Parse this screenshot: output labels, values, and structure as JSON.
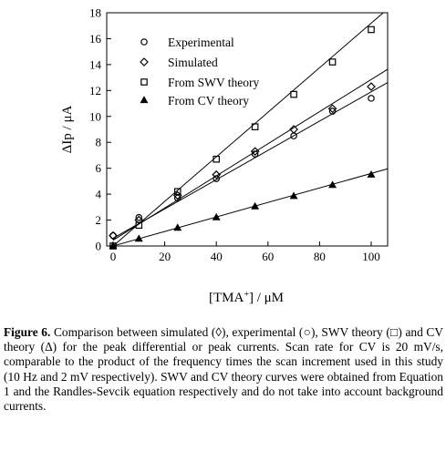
{
  "chart_data": {
    "type": "scatter",
    "xlabel": "[TMA+] / μM",
    "ylabel": "ΔIp / μA",
    "xlim": [
      0,
      105
    ],
    "ylim": [
      0,
      18
    ],
    "xticks": [
      0,
      20,
      40,
      60,
      80,
      100
    ],
    "yticks": [
      0,
      2,
      4,
      6,
      8,
      10,
      12,
      14,
      16,
      18
    ],
    "grid": false,
    "legend_position": "top-left",
    "series": [
      {
        "name": "Experimental",
        "marker": "circle",
        "x": [
          0,
          10,
          25,
          40,
          55,
          70,
          85,
          100
        ],
        "y": [
          0.8,
          2.2,
          3.7,
          5.2,
          7.1,
          8.5,
          10.4,
          11.4
        ],
        "fit": [
          0.6,
          0.113
        ]
      },
      {
        "name": "Simulated",
        "marker": "diamond",
        "x": [
          0,
          10,
          25,
          40,
          55,
          70,
          85,
          100
        ],
        "y": [
          0.8,
          2.0,
          3.9,
          5.5,
          7.3,
          9.0,
          10.6,
          12.3
        ],
        "fit": [
          0.45,
          0.124
        ]
      },
      {
        "name": "From SWV theory",
        "marker": "square",
        "x": [
          0,
          10,
          25,
          40,
          55,
          70,
          85,
          100
        ],
        "y": [
          0,
          1.6,
          4.2,
          6.7,
          9.2,
          11.7,
          14.2,
          16.7
        ],
        "fit": [
          0,
          0.172
        ]
      },
      {
        "name": "From CV theory",
        "marker": "triangle",
        "x": [
          0,
          10,
          25,
          40,
          55,
          70,
          85,
          100
        ],
        "y": [
          0,
          0.55,
          1.4,
          2.2,
          3.05,
          3.85,
          4.7,
          5.5
        ],
        "fit": [
          0,
          0.056
        ]
      }
    ]
  },
  "caption": {
    "label": "Figure 6.",
    "text": "Comparison between simulated (◊), experimental (○), SWV theory (□) and CV theory (Δ) for the peak differential or peak currents. Scan rate for CV is 20 mV/s, comparable to the product of the frequency times the scan increment used in this study (10 Hz and 2 mV respectively). SWV and CV theory curves were obtained from Equation 1 and the Randles-Sevcik equation respectively and do not take into account background currents."
  }
}
